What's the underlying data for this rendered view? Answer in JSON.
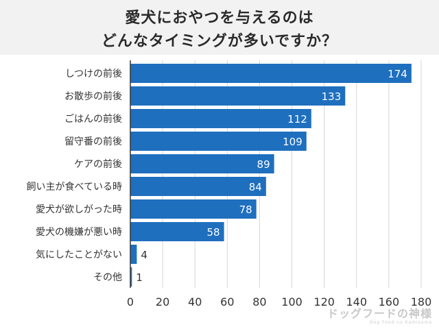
{
  "title": {
    "line1": "愛犬におやつを与えるのは",
    "line2": "どんなタイミングが多いですか？"
  },
  "chart_data": {
    "type": "bar",
    "orientation": "horizontal",
    "categories": [
      "しつけの前後",
      "お散歩の前後",
      "ごはんの前後",
      "留守番の前後",
      "ケアの前後",
      "飼い主が食べている時",
      "愛犬が欲しがった時",
      "愛犬の機嫌が悪い時",
      "気にしたことがない",
      "その他"
    ],
    "values": [
      174,
      133,
      112,
      109,
      89,
      84,
      78,
      58,
      4,
      1
    ],
    "xlim": [
      0,
      180
    ],
    "xticks": [
      0,
      20,
      40,
      60,
      80,
      100,
      120,
      140,
      160,
      180
    ],
    "grid": true,
    "bar_color": "#1f6fbf",
    "grid_color": "#d6d6d6"
  },
  "logo": {
    "main": "ドッグフードの神様",
    "sub": "Dog Food no Kamisama"
  }
}
